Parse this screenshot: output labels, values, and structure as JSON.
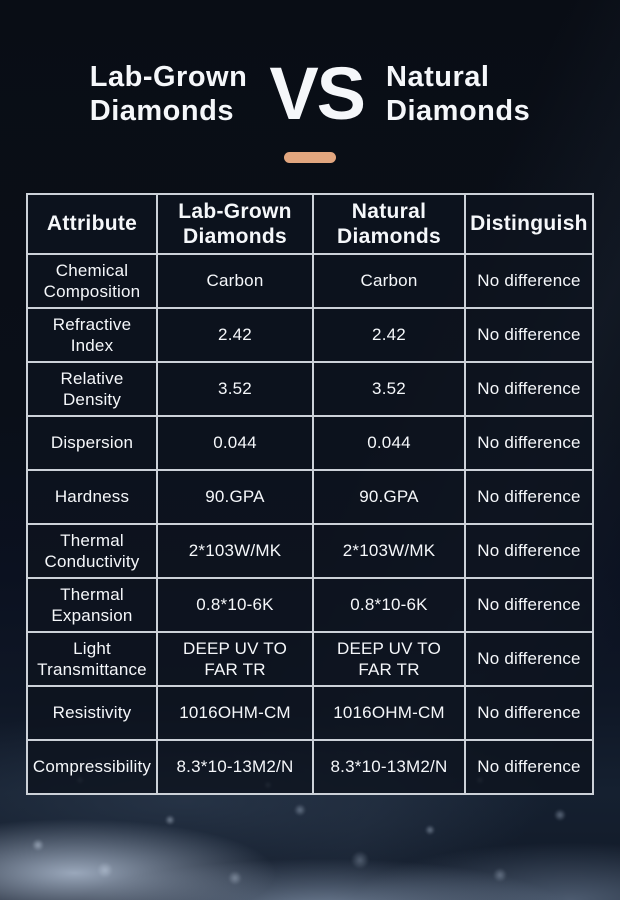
{
  "header": {
    "title_left": "Lab-Grown\nDiamonds",
    "vs": "VS",
    "title_right": "Natural\nDiamonds"
  },
  "table": {
    "columns": [
      "Attribute",
      "Lab-Grown\nDiamonds",
      "Natural\nDiamonds",
      "Distinguish"
    ],
    "rows": [
      {
        "attribute": "Chemical\nComposition",
        "lab_grown": "Carbon",
        "natural": "Carbon",
        "distinguish": "No difference"
      },
      {
        "attribute": "Refractive\nIndex",
        "lab_grown": "2.42",
        "natural": "2.42",
        "distinguish": "No difference"
      },
      {
        "attribute": "Relative\nDensity",
        "lab_grown": "3.52",
        "natural": "3.52",
        "distinguish": "No difference"
      },
      {
        "attribute": "Dispersion",
        "lab_grown": "0.044",
        "natural": "0.044",
        "distinguish": "No difference"
      },
      {
        "attribute": "Hardness",
        "lab_grown": "90.GPA",
        "natural": "90.GPA",
        "distinguish": "No difference"
      },
      {
        "attribute": "Thermal\nConductivity",
        "lab_grown": "2*103W/MK",
        "natural": "2*103W/MK",
        "distinguish": "No difference"
      },
      {
        "attribute": "Thermal\nExpansion",
        "lab_grown": "0.8*10-6K",
        "natural": "0.8*10-6K",
        "distinguish": "No difference"
      },
      {
        "attribute": "Light\nTransmittance",
        "lab_grown": "DEEP UV TO\nFAR TR",
        "natural": "DEEP UV TO\nFAR TR",
        "distinguish": "No difference"
      },
      {
        "attribute": "Resistivity",
        "lab_grown": "1016OHM-CM",
        "natural": "1016OHM-CM",
        "distinguish": "No difference"
      },
      {
        "attribute": "Compressibility",
        "lab_grown": "8.3*10-13M2/N",
        "natural": "8.3*10-13M2/N",
        "distinguish": "No difference"
      }
    ]
  },
  "colors": {
    "accent_bar": "#e2a67f",
    "table_border": "#ccd1d8",
    "cell_background": "#0d131fd1",
    "text": "#f5f7fa"
  }
}
